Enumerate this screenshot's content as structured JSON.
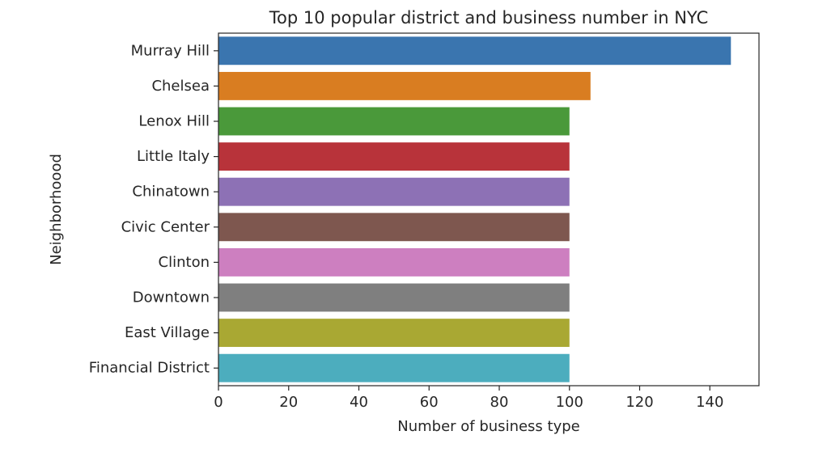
{
  "chart_data": {
    "type": "bar",
    "orientation": "horizontal",
    "title": "Top 10 popular district and business number in NYC",
    "xlabel": "Number of business type",
    "ylabel": "Neighborhoood",
    "categories": [
      "Murray Hill",
      "Chelsea",
      "Lenox Hill",
      "Little Italy",
      "Chinatown",
      "Civic Center",
      "Clinton",
      "Downtown",
      "East Village",
      "Financial District"
    ],
    "values": [
      146,
      106,
      100,
      100,
      100,
      100,
      100,
      100,
      100,
      100
    ],
    "colors": [
      "#3a75af",
      "#d97d21",
      "#4a993a",
      "#b8333a",
      "#8d71b5",
      "#7e574f",
      "#cd7fc0",
      "#7f7f7f",
      "#a9a833",
      "#4cadbe"
    ],
    "xlim": [
      0,
      154
    ],
    "xticks": [
      0,
      20,
      40,
      60,
      80,
      100,
      120,
      140
    ],
    "grid": false,
    "legend": "none"
  }
}
